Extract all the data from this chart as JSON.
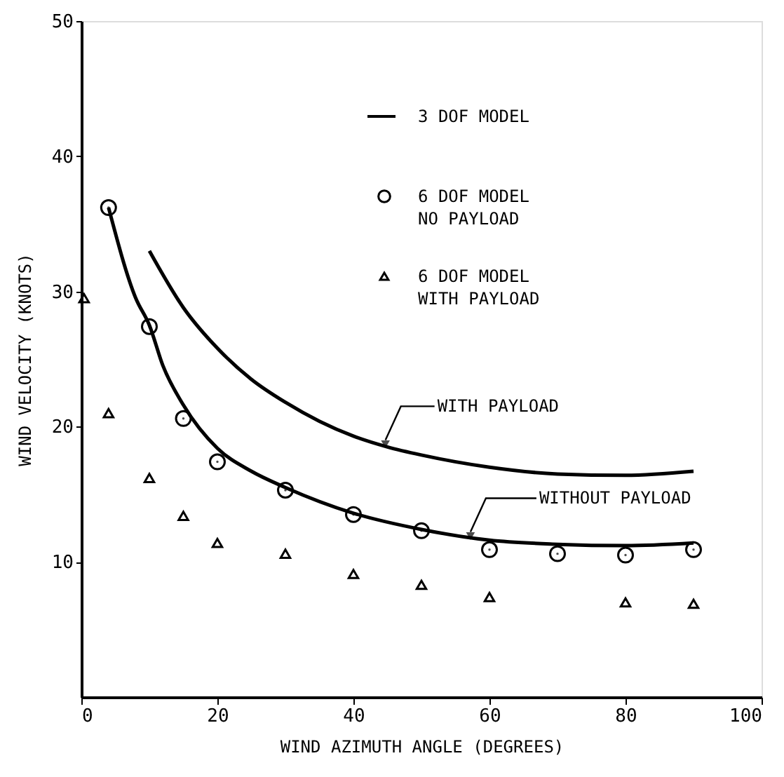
{
  "chart_data": {
    "type": "scatter",
    "xlabel": "WIND AZIMUTH ANGLE (DEGREES)",
    "ylabel": "WIND VELOCITY (KNOTS)",
    "xlim": [
      0,
      100
    ],
    "xticks": [
      0,
      20,
      40,
      60,
      80,
      100
    ],
    "ylim": [
      0,
      50
    ],
    "yticks": [
      10,
      20,
      30,
      40,
      50
    ],
    "grid": false,
    "legend": "top right",
    "series": [
      {
        "name": "3 DOF MODEL",
        "type": "line",
        "color": "#000000",
        "marker": "none",
        "x": [
          10,
          15,
          20,
          25,
          30,
          35,
          40,
          45,
          50,
          60,
          70,
          80,
          90
        ],
        "values": [
          33.0,
          28.8,
          25.8,
          23.5,
          21.8,
          20.4,
          19.3,
          18.5,
          17.9,
          17.0,
          16.5,
          16.4,
          16.7
        ]
      },
      {
        "type": "line",
        "color": "#000000",
        "marker": "none",
        "x": [
          4,
          8,
          10,
          12,
          15,
          20,
          25,
          30,
          40,
          50,
          60,
          70,
          80,
          90
        ],
        "values": [
          36.2,
          29.5,
          27.5,
          24.5,
          21.6,
          18.4,
          16.7,
          15.5,
          13.6,
          12.4,
          11.6,
          11.3,
          11.2,
          11.4
        ]
      },
      {
        "name": "6 DOF MODEL\nNO PAYLOAD",
        "type": "scatter",
        "color": "#000000",
        "marker": "circle",
        "x": [
          4,
          10,
          15,
          20,
          30,
          40,
          50,
          60,
          70,
          80,
          90
        ],
        "values": [
          36.2,
          27.4,
          20.6,
          17.4,
          15.3,
          13.5,
          12.3,
          10.9,
          10.6,
          10.5,
          10.9
        ]
      },
      {
        "name": "6 DOF MODEL\nWITH PAYLOAD",
        "type": "scatter",
        "color": "#000000",
        "marker": "triangle",
        "x": [
          0.4,
          4,
          10,
          15,
          20,
          30,
          40,
          50,
          60,
          80,
          90
        ],
        "values": [
          29.5,
          21.0,
          16.2,
          13.4,
          11.4,
          10.6,
          9.1,
          8.3,
          7.4,
          7.0,
          6.9
        ]
      }
    ],
    "annotations": [
      {
        "text": "WITH PAYLOAD",
        "x": 44.5,
        "y": 18.6
      },
      {
        "text": "WITHOUT PAYLOAD",
        "x": 57,
        "y": 11.8
      }
    ]
  }
}
